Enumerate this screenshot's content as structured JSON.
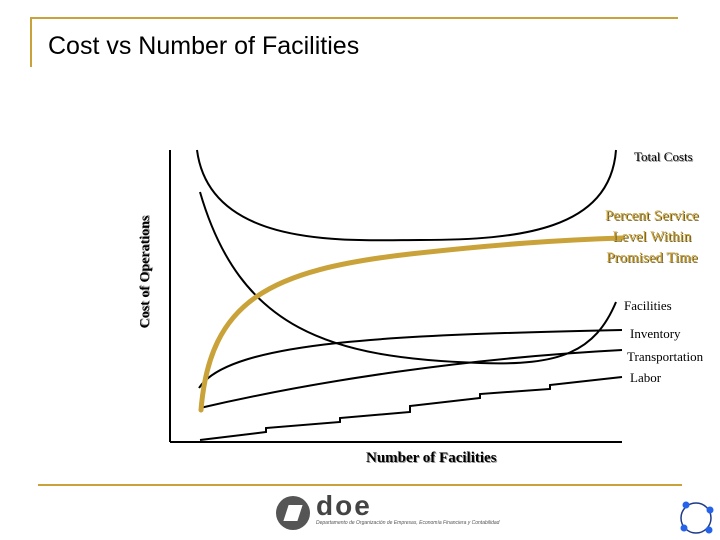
{
  "slide": {
    "title": "Cost vs Number of Facilities"
  },
  "diagram": {
    "y_axis_label": "Cost of Operations",
    "x_axis_label": "Number of Facilities",
    "curves": [
      {
        "label": "Total Costs",
        "color": "#000000"
      },
      {
        "label": "Percent Service Level Within Promised Time",
        "lines": [
          "Percent Service",
          "Level Within",
          "Promised Time"
        ],
        "color": "#c9a23a"
      },
      {
        "label": "Facilities",
        "color": "#000000"
      },
      {
        "label": "Inventory",
        "color": "#000000"
      },
      {
        "label": "Transportation",
        "color": "#000000"
      },
      {
        "label": "Labor",
        "color": "#000000"
      }
    ]
  },
  "footer": {
    "logo_text": "doe",
    "logo_tagline": "Departamento de Organización de Empresas, Economía Financiera y Contabilidad"
  },
  "colors": {
    "accent": "#c9a23a",
    "ink": "#000000"
  }
}
